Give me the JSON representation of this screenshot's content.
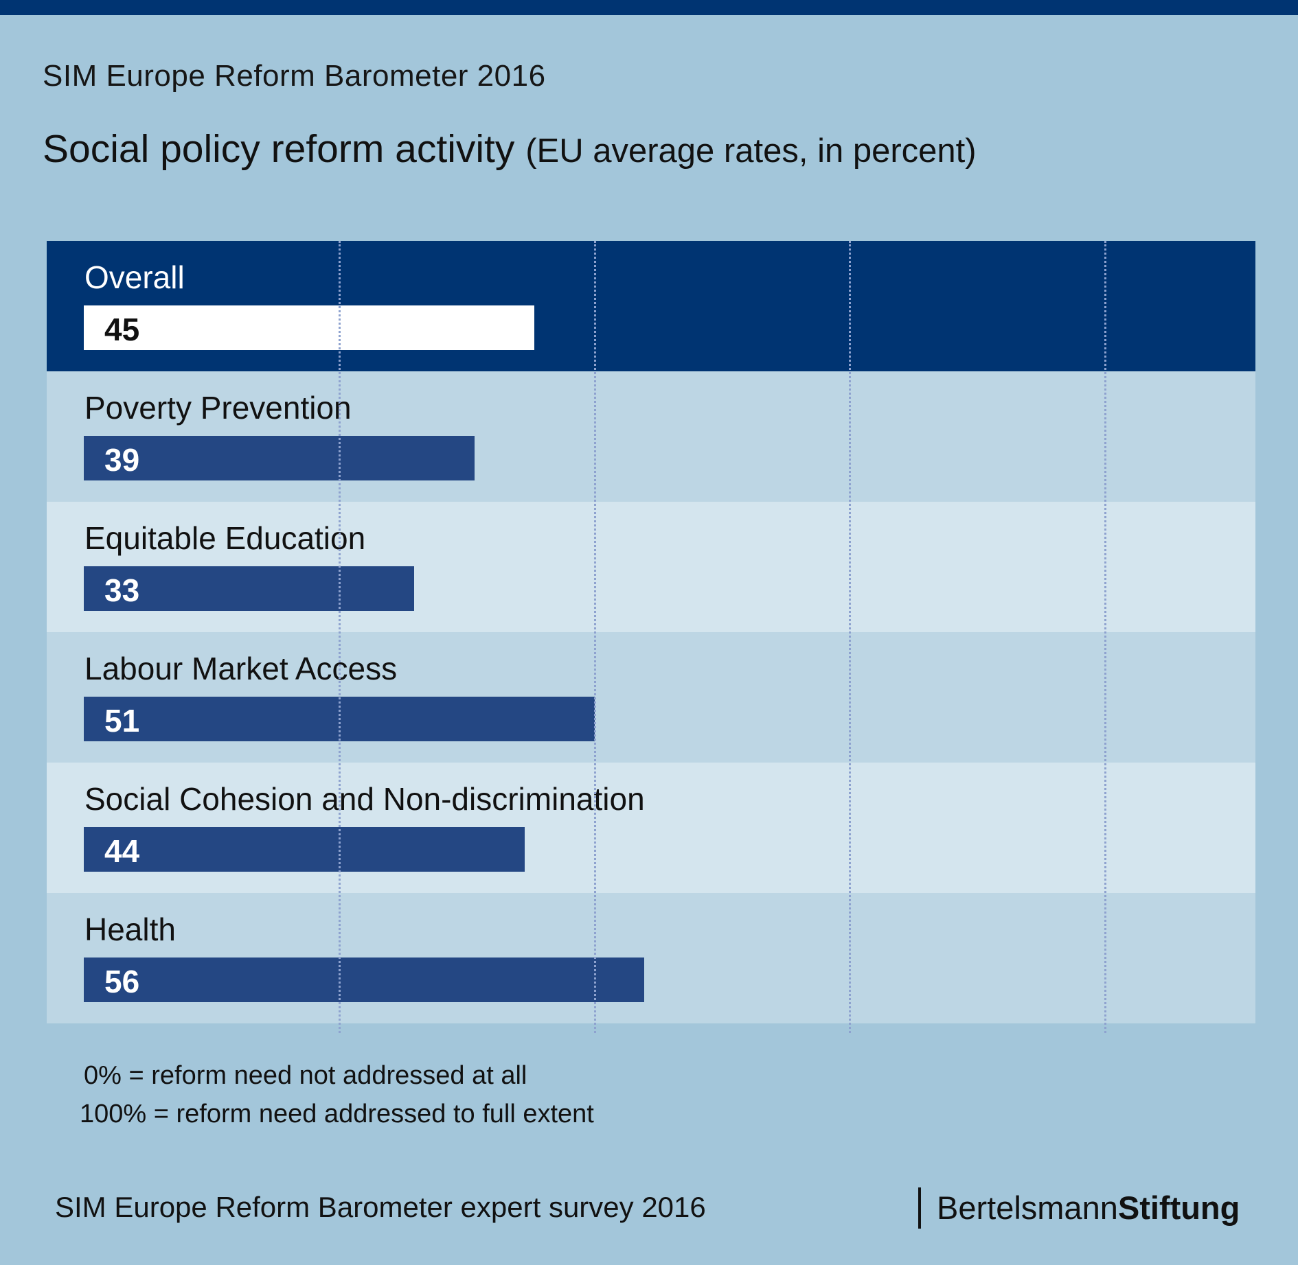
{
  "header": {
    "supertitle": "SIM Europe Reform Barometer 2016"
  },
  "chart_data": {
    "type": "bar",
    "orientation": "horizontal",
    "title": "Social policy reform activity",
    "subtitle": "(EU average rates, in percent)",
    "categories": [
      "Overall",
      "Poverty Prevention",
      "Equitable Education",
      "Labour Market Access",
      "Social Cohesion and Non-discrimination",
      "Health"
    ],
    "values": [
      45,
      39,
      33,
      51,
      44,
      56
    ],
    "xlim": [
      0,
      105
    ],
    "gridlines": [
      25.5,
      51,
      76.5,
      102
    ],
    "grid": true,
    "highlight_category": "Overall",
    "colors": {
      "bar": "#244783",
      "highlight_bar": "#ffffff",
      "highlight_row": "#003472",
      "row_light": "#d4e5ee",
      "row_mid": "#bdd6e4",
      "background": "#a3c6da"
    }
  },
  "notes": {
    "line1": "0% = reform need not addressed at all",
    "line2": "100% = reform need addressed to full extent"
  },
  "footer": {
    "source": "SIM Europe Reform Barometer expert survey 2016",
    "brand_light": "Bertelsmann",
    "brand_bold": "Stiftung"
  }
}
